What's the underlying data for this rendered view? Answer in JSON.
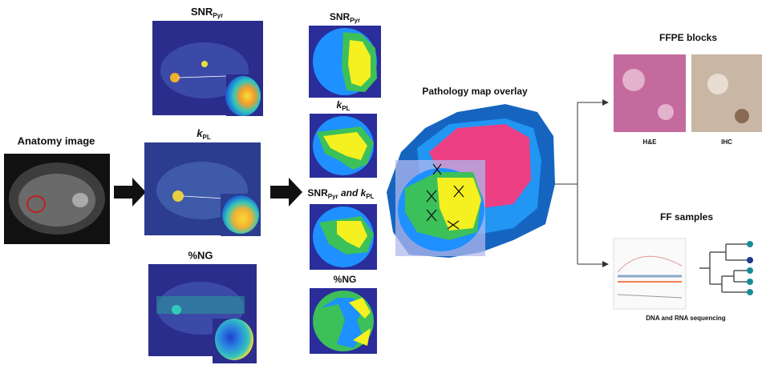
{
  "anatomy": {
    "title": "Anatomy image"
  },
  "maps": [
    {
      "main": "SNR",
      "sub": "Pyr"
    },
    {
      "main": "k",
      "sub": "PL"
    },
    {
      "main": "%NG"
    }
  ],
  "segmentations": [
    {
      "main": "SNR",
      "sub": "Pyr"
    },
    {
      "main": "k",
      "sub": "PL"
    },
    {
      "main": "SNR",
      "sub": "Pyr",
      "joiner": " and k",
      "sub2": "PL"
    },
    {
      "main": "%NG"
    }
  ],
  "overlay": {
    "title": "Pathology map overlay"
  },
  "ffpe": {
    "title": "FFPE blocks",
    "stains": [
      "H&E",
      "IHC"
    ]
  },
  "ff": {
    "title": "FF samples",
    "caption": "DNA and RNA sequencing"
  }
}
